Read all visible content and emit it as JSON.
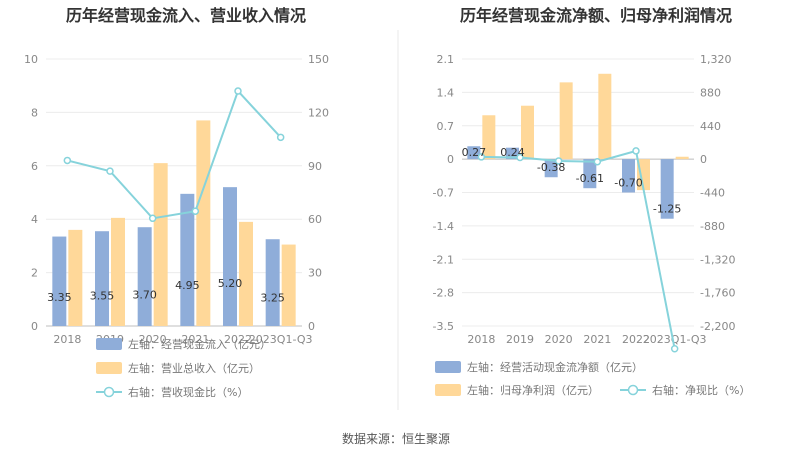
{
  "colors": {
    "inflow": "#8fadd9",
    "revenue": "#ffd899",
    "ratio_line": "#86d3db",
    "grid": "#ececec",
    "divider": "#e8e8e8"
  },
  "source_text": "数据来源：恒生聚源",
  "chart_data": [
    {
      "type": "bar",
      "title": "历年经营现金流入、营业收入情况",
      "categories": [
        "2018",
        "2019",
        "2020",
        "2021",
        "2022",
        "2023Q1-Q3"
      ],
      "left_axis": {
        "ylim": [
          0,
          10
        ],
        "ticks": [
          "0",
          "2",
          "4",
          "6",
          "8",
          "10"
        ]
      },
      "right_axis": {
        "ylim": [
          0,
          150
        ],
        "ticks": [
          "0",
          "30",
          "60",
          "90",
          "120",
          "150"
        ]
      },
      "series": [
        {
          "name": "左轴：经营现金流入（亿元）",
          "type": "bar",
          "axis": "left",
          "values": [
            3.35,
            3.55,
            3.7,
            4.95,
            5.2,
            3.25
          ],
          "labels": [
            "3.35",
            "3.55",
            "3.70",
            "4.95",
            "5.20",
            "3.25"
          ]
        },
        {
          "name": "左轴：营业总收入（亿元）",
          "type": "bar",
          "axis": "left",
          "values": [
            3.6,
            4.05,
            6.1,
            7.7,
            3.9,
            3.05
          ]
        },
        {
          "name": "右轴：营收现金比（%）",
          "type": "line",
          "axis": "right",
          "values": [
            93,
            87,
            60.5,
            64.5,
            132,
            106
          ]
        }
      ]
    },
    {
      "type": "bar",
      "title": "历年经营现金流净额、归母净利润情况",
      "categories": [
        "2018",
        "2019",
        "2020",
        "2021",
        "2022",
        "2023Q1-Q3"
      ],
      "left_axis": {
        "ylim": [
          -3.5,
          2.1
        ],
        "ticks": [
          "2.1",
          "1.4",
          "0.7",
          "0",
          "-0.7",
          "-1.4",
          "-2.1",
          "-2.8",
          "-3.5"
        ]
      },
      "right_axis": {
        "ylim": [
          -2200,
          1320
        ],
        "ticks": [
          "1,320",
          "880",
          "440",
          "0",
          "-440",
          "-880",
          "-1,320",
          "-1,760",
          "-2,200"
        ]
      },
      "series": [
        {
          "name": "左轴：经营活动现金流净额（亿元）",
          "type": "bar",
          "axis": "left",
          "values": [
            0.27,
            0.24,
            -0.38,
            -0.61,
            -0.7,
            -1.25
          ],
          "labels": [
            "0.27",
            "0.24",
            "-0.38",
            "-0.61",
            "-0.70",
            "-1.25"
          ]
        },
        {
          "name": "左轴：归母净利润（亿元）",
          "type": "bar",
          "axis": "left",
          "values": [
            0.92,
            1.12,
            1.61,
            1.79,
            -0.65,
            0.05
          ]
        },
        {
          "name": "右轴：净现比（%）",
          "type": "line",
          "axis": "right",
          "values": [
            29,
            21,
            -24,
            -34,
            108,
            -2500
          ]
        }
      ]
    }
  ]
}
